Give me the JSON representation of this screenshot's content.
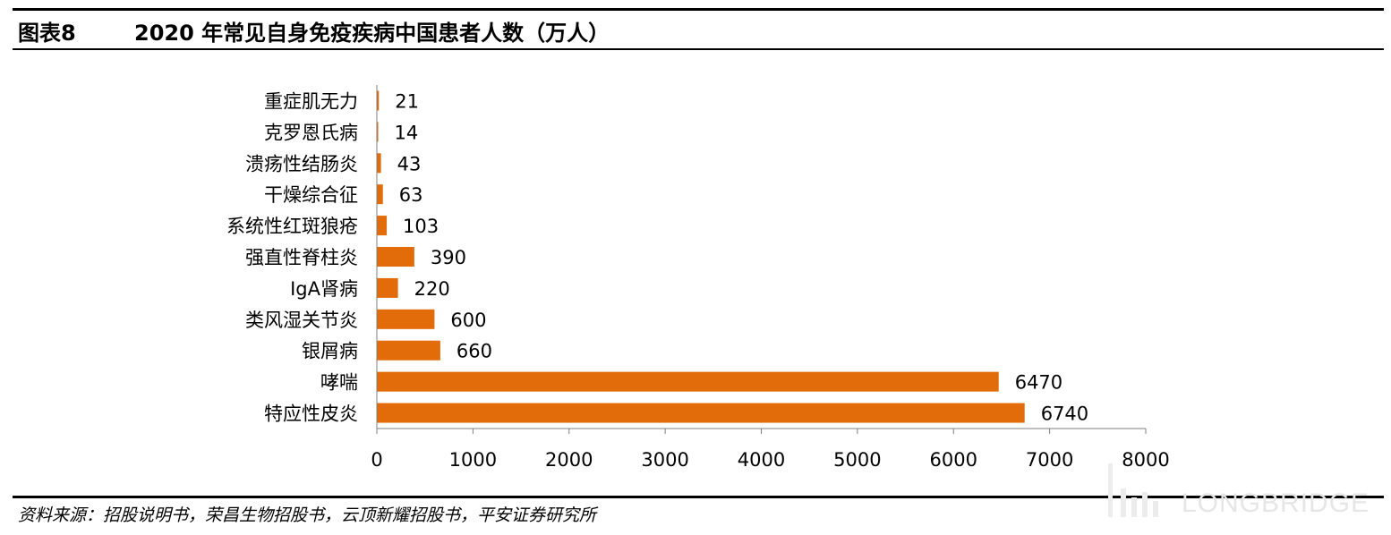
{
  "figure": {
    "number": "图表8",
    "title": "2020 年常见自身免疫疾病中国患者人数（万人）"
  },
  "source": "资料来源：招股说明书，荣昌生物招股书，云顶新耀招股书，平安证券研究所",
  "watermark": "LONGBRIDGE",
  "chart_data": {
    "type": "bar",
    "orientation": "horizontal",
    "categories": [
      "重症肌无力",
      "克罗恩氏病",
      "溃疡性结肠炎",
      "干燥综合征",
      "系统性红斑狼疮",
      "强直性脊柱炎",
      "IgA肾病",
      "类风湿关节炎",
      "银屑病",
      "哮喘",
      "特应性皮炎"
    ],
    "values": [
      21,
      14,
      43,
      63,
      103,
      390,
      220,
      600,
      660,
      6470,
      6740
    ],
    "data_labels": [
      "21",
      "14",
      "43",
      "63",
      "103",
      "390",
      "220",
      "600",
      "660",
      "6470",
      "6740"
    ],
    "x_ticks": [
      "0",
      "1000",
      "2000",
      "3000",
      "4000",
      "5000",
      "6000",
      "7000",
      "8000"
    ],
    "xlim": [
      0,
      8000
    ],
    "bar_color": "#E36C0A",
    "grid": false,
    "legend": "none"
  }
}
